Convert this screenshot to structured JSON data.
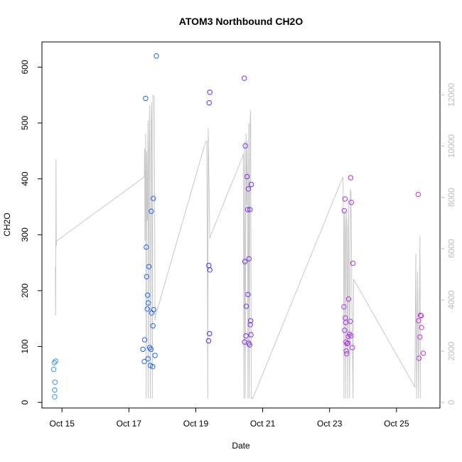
{
  "chart_data": {
    "type": "scatter",
    "title": "ATOM3 Northbound CH2O",
    "xlabel": "Date",
    "ylabel": "CH2O",
    "x_ticks": [
      "Oct 15",
      "Oct 17",
      "Oct 19",
      "Oct 21",
      "Oct 23",
      "Oct 25"
    ],
    "x_tick_values": [
      15,
      17,
      19,
      21,
      23,
      25
    ],
    "xlim": [
      14.4,
      26.3
    ],
    "ylim": [
      -10,
      645
    ],
    "y_ticks": [
      0,
      100,
      200,
      300,
      400,
      500,
      600
    ],
    "y2_ticks": [
      0,
      2000,
      4000,
      6000,
      8000,
      10000,
      12000
    ],
    "y2lim": [
      -218,
      14067
    ],
    "grid": false,
    "line_color": "#c8c8c8",
    "point_colors": [
      "#3399ee",
      "#2266ee",
      "#4433ee",
      "#7733ee",
      "#aa33ee",
      "#cc33dd"
    ],
    "points": [
      {
        "x": 14.78,
        "y": 10
      },
      {
        "x": 14.78,
        "y": 22
      },
      {
        "x": 14.79,
        "y": 36
      },
      {
        "x": 14.75,
        "y": 59
      },
      {
        "x": 14.77,
        "y": 71
      },
      {
        "x": 14.81,
        "y": 74
      },
      {
        "x": 17.42,
        "y": 95
      },
      {
        "x": 17.46,
        "y": 73
      },
      {
        "x": 17.47,
        "y": 112
      },
      {
        "x": 17.5,
        "y": 544
      },
      {
        "x": 17.52,
        "y": 278
      },
      {
        "x": 17.53,
        "y": 225
      },
      {
        "x": 17.55,
        "y": 167
      },
      {
        "x": 17.56,
        "y": 192
      },
      {
        "x": 17.58,
        "y": 178
      },
      {
        "x": 17.6,
        "y": 243
      },
      {
        "x": 17.57,
        "y": 78
      },
      {
        "x": 17.62,
        "y": 98
      },
      {
        "x": 17.64,
        "y": 66
      },
      {
        "x": 17.66,
        "y": 95
      },
      {
        "x": 17.68,
        "y": 160
      },
      {
        "x": 17.67,
        "y": 342
      },
      {
        "x": 17.71,
        "y": 64
      },
      {
        "x": 17.73,
        "y": 365
      },
      {
        "x": 17.72,
        "y": 137
      },
      {
        "x": 17.74,
        "y": 166
      },
      {
        "x": 17.78,
        "y": 84
      },
      {
        "x": 17.82,
        "y": 620
      },
      {
        "x": 19.38,
        "y": 110
      },
      {
        "x": 19.39,
        "y": 245
      },
      {
        "x": 19.41,
        "y": 123
      },
      {
        "x": 19.42,
        "y": 237
      },
      {
        "x": 19.4,
        "y": 536
      },
      {
        "x": 19.42,
        "y": 555
      },
      {
        "x": 20.45,
        "y": 580
      },
      {
        "x": 20.46,
        "y": 108
      },
      {
        "x": 20.47,
        "y": 252
      },
      {
        "x": 20.48,
        "y": 459
      },
      {
        "x": 20.5,
        "y": 119
      },
      {
        "x": 20.51,
        "y": 172
      },
      {
        "x": 20.53,
        "y": 404
      },
      {
        "x": 20.55,
        "y": 345
      },
      {
        "x": 20.56,
        "y": 193
      },
      {
        "x": 20.57,
        "y": 382
      },
      {
        "x": 20.58,
        "y": 106
      },
      {
        "x": 20.59,
        "y": 257
      },
      {
        "x": 20.61,
        "y": 103
      },
      {
        "x": 20.62,
        "y": 345
      },
      {
        "x": 20.63,
        "y": 139
      },
      {
        "x": 20.64,
        "y": 146
      },
      {
        "x": 20.65,
        "y": 121
      },
      {
        "x": 20.66,
        "y": 390
      },
      {
        "x": 23.43,
        "y": 171
      },
      {
        "x": 23.44,
        "y": 343
      },
      {
        "x": 23.45,
        "y": 129
      },
      {
        "x": 23.46,
        "y": 364
      },
      {
        "x": 23.47,
        "y": 151
      },
      {
        "x": 23.48,
        "y": 143
      },
      {
        "x": 23.49,
        "y": 108
      },
      {
        "x": 23.5,
        "y": 92
      },
      {
        "x": 23.51,
        "y": 87
      },
      {
        "x": 23.52,
        "y": 105
      },
      {
        "x": 23.55,
        "y": 106
      },
      {
        "x": 23.56,
        "y": 118
      },
      {
        "x": 23.57,
        "y": 185
      },
      {
        "x": 23.6,
        "y": 122
      },
      {
        "x": 23.62,
        "y": 145
      },
      {
        "x": 23.63,
        "y": 402
      },
      {
        "x": 23.64,
        "y": 119
      },
      {
        "x": 23.65,
        "y": 358
      },
      {
        "x": 23.68,
        "y": 98
      },
      {
        "x": 23.7,
        "y": 249
      },
      {
        "x": 25.65,
        "y": 372
      },
      {
        "x": 25.66,
        "y": 146
      },
      {
        "x": 25.67,
        "y": 79
      },
      {
        "x": 25.7,
        "y": 117
      },
      {
        "x": 25.72,
        "y": 156
      },
      {
        "x": 25.74,
        "y": 155
      },
      {
        "x": 25.75,
        "y": 134
      },
      {
        "x": 25.8,
        "y": 88
      }
    ],
    "line": [
      {
        "x": 14.8,
        "y2": 5300
      },
      {
        "x": 14.81,
        "y2": 3400
      },
      {
        "x": 14.82,
        "y2": 9500
      },
      {
        "x": 14.83,
        "y2": 6100
      },
      {
        "x": 14.84,
        "y2": 6300
      },
      {
        "x": 17.46,
        "y2": 8800
      },
      {
        "x": 17.47,
        "y2": 9900
      },
      {
        "x": 17.48,
        "y2": 6300
      },
      {
        "x": 17.5,
        "y2": 10500
      },
      {
        "x": 17.52,
        "y2": 150
      },
      {
        "x": 17.53,
        "y2": 9800
      },
      {
        "x": 17.55,
        "y2": 7100
      },
      {
        "x": 17.57,
        "y2": 11000
      },
      {
        "x": 17.58,
        "y2": 150
      },
      {
        "x": 17.6,
        "y2": 9900
      },
      {
        "x": 17.62,
        "y2": 11600
      },
      {
        "x": 17.64,
        "y2": 150
      },
      {
        "x": 17.66,
        "y2": 10800
      },
      {
        "x": 17.68,
        "y2": 11700
      },
      {
        "x": 17.7,
        "y2": 150
      },
      {
        "x": 17.72,
        "y2": 12000
      },
      {
        "x": 17.76,
        "y2": 11900
      },
      {
        "x": 17.78,
        "y2": 3200
      },
      {
        "x": 17.8,
        "y2": 3400
      },
      {
        "x": 19.3,
        "y2": 10200
      },
      {
        "x": 19.33,
        "y2": 10200
      },
      {
        "x": 19.36,
        "y2": 150
      },
      {
        "x": 19.37,
        "y2": 10700
      },
      {
        "x": 19.42,
        "y2": 6400
      },
      {
        "x": 19.44,
        "y2": 6500
      },
      {
        "x": 20.4,
        "y2": 9600
      },
      {
        "x": 20.42,
        "y2": 9700
      },
      {
        "x": 20.44,
        "y2": 150
      },
      {
        "x": 20.46,
        "y2": 10200
      },
      {
        "x": 20.48,
        "y2": 150
      },
      {
        "x": 20.5,
        "y2": 10500
      },
      {
        "x": 20.52,
        "y2": 7700
      },
      {
        "x": 20.54,
        "y2": 10200
      },
      {
        "x": 20.56,
        "y2": 150
      },
      {
        "x": 20.58,
        "y2": 10900
      },
      {
        "x": 20.6,
        "y2": 150
      },
      {
        "x": 20.62,
        "y2": 10900
      },
      {
        "x": 20.64,
        "y2": 11400
      },
      {
        "x": 20.66,
        "y2": 150
      },
      {
        "x": 20.7,
        "y2": 150
      },
      {
        "x": 23.4,
        "y2": 8800
      },
      {
        "x": 23.42,
        "y2": 6500
      },
      {
        "x": 23.43,
        "y2": 150
      },
      {
        "x": 23.45,
        "y2": 7500
      },
      {
        "x": 23.47,
        "y2": 6600
      },
      {
        "x": 23.48,
        "y2": 150
      },
      {
        "x": 23.5,
        "y2": 7400
      },
      {
        "x": 23.52,
        "y2": 6800
      },
      {
        "x": 23.54,
        "y2": 150
      },
      {
        "x": 23.56,
        "y2": 7900
      },
      {
        "x": 23.58,
        "y2": 5000
      },
      {
        "x": 23.6,
        "y2": 150
      },
      {
        "x": 23.62,
        "y2": 8300
      },
      {
        "x": 23.64,
        "y2": 8200
      },
      {
        "x": 23.66,
        "y2": 4900
      },
      {
        "x": 23.7,
        "y2": 150
      },
      {
        "x": 23.72,
        "y2": 4800
      },
      {
        "x": 25.55,
        "y2": 600
      },
      {
        "x": 25.58,
        "y2": 5800
      },
      {
        "x": 25.6,
        "y2": 150
      },
      {
        "x": 25.63,
        "y2": 5100
      },
      {
        "x": 25.66,
        "y2": 150
      },
      {
        "x": 25.7,
        "y2": 6500
      },
      {
        "x": 25.72,
        "y2": 150
      }
    ]
  }
}
